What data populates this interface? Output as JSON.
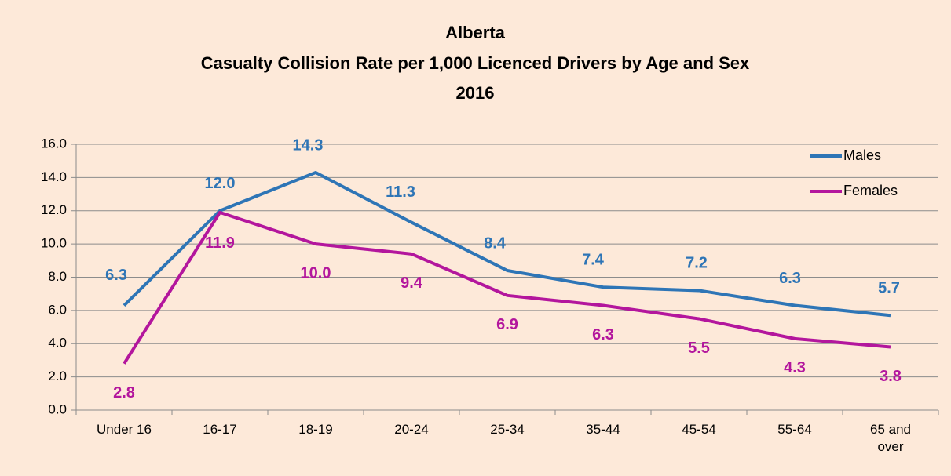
{
  "chart_data": {
    "type": "line",
    "title": [
      "Alberta",
      "Casualty Collision Rate per 1,000 Licenced Drivers by Age and Sex",
      "2016"
    ],
    "categories": [
      "Under 16",
      "16-17",
      "18-19",
      "20-24",
      "25-34",
      "35-44",
      "45-54",
      "55-64",
      "65 and over"
    ],
    "series": [
      {
        "name": "Males",
        "color": "#2e75b6",
        "values": [
          6.3,
          12.0,
          14.3,
          11.3,
          8.4,
          7.4,
          7.2,
          6.3,
          5.7
        ],
        "value_labels": [
          "6.3",
          "12.0",
          "14.3",
          "11.3",
          "8.4",
          "7.4",
          "7.2",
          "6.3",
          "5.7"
        ]
      },
      {
        "name": "Females",
        "color": "#b3169d",
        "values": [
          2.8,
          11.9,
          10.0,
          9.4,
          6.9,
          6.3,
          5.5,
          4.3,
          3.8
        ],
        "value_labels": [
          "2.8",
          "11.9",
          "10.0",
          "9.4",
          "6.9",
          "6.3",
          "5.5",
          "4.3",
          "3.8"
        ]
      }
    ],
    "ylim": [
      0,
      16
    ],
    "yticks": [
      {
        "value": 0,
        "label": "0.0"
      },
      {
        "value": 2,
        "label": "2.0"
      },
      {
        "value": 4,
        "label": "4.0"
      },
      {
        "value": 6,
        "label": "6.0"
      },
      {
        "value": 8,
        "label": "8.0"
      },
      {
        "value": 10,
        "label": "10.0"
      },
      {
        "value": 12,
        "label": "12.0"
      },
      {
        "value": 14,
        "label": "14.0"
      },
      {
        "value": 16,
        "label": "16.0"
      }
    ],
    "grid": true,
    "legend": "top-right"
  }
}
